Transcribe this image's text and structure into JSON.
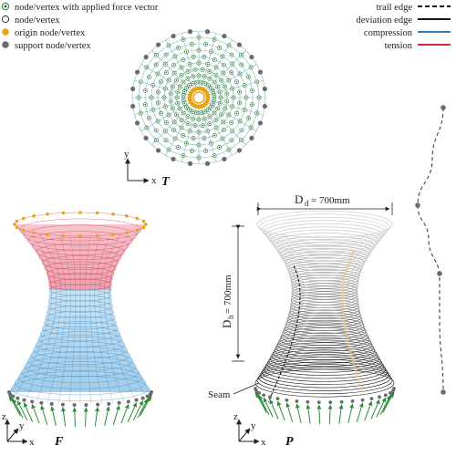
{
  "legend_left": [
    {
      "label": "node/vertex with applied force vector",
      "marker": "force-node"
    },
    {
      "label": "node/vertex",
      "marker": "node"
    },
    {
      "label": "origin node/vertex",
      "marker": "origin-node"
    },
    {
      "label": "support node/vertex",
      "marker": "support-node"
    }
  ],
  "legend_right": [
    {
      "label": "trail edge",
      "style": "dashed"
    },
    {
      "label": "deviation edge",
      "style": "solid"
    },
    {
      "label": "compression",
      "color": "#2f7fc1"
    },
    {
      "label": "tension",
      "color": "#d7263d"
    }
  ],
  "panels": {
    "top": {
      "label": "T",
      "axis_x": "x",
      "axis_y": "y"
    },
    "left": {
      "label": "F",
      "axis_x": "x",
      "axis_y": "y",
      "axis_z": "z"
    },
    "right": {
      "label": "P",
      "axis_x": "x",
      "axis_y": "y",
      "axis_z": "z"
    }
  },
  "dimensions": {
    "diameter_main": "D",
    "diameter_sub": "d",
    "diameter_value": "= 700mm",
    "height_main": "D",
    "height_sub": "h",
    "height_value": "= 700mm"
  },
  "seam_label": "Seam",
  "colors": {
    "compression": "#2f7fc1",
    "tension": "#d7263d",
    "origin": "#e8a317",
    "support": "#6b6b6b",
    "force": "#2e8b3a",
    "edge": "#7fb8c7"
  }
}
